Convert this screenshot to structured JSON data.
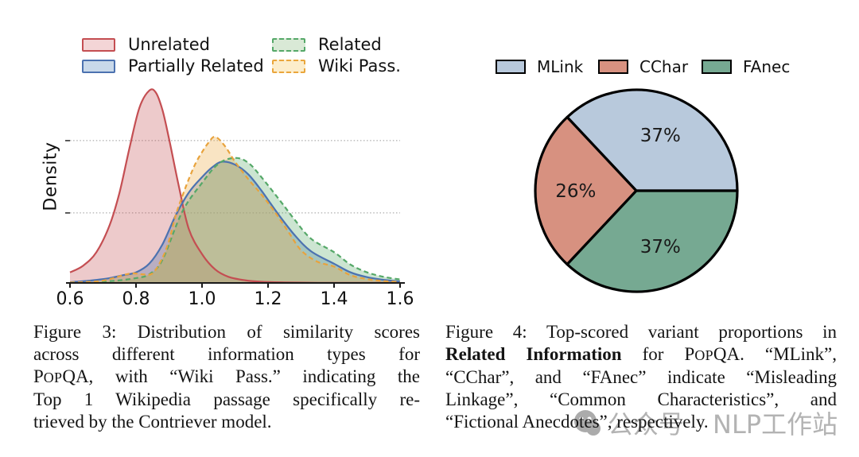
{
  "figure3": {
    "ylabel": "Density",
    "legend": [
      {
        "label": "Unrelated",
        "stroke": "#c44e52",
        "fill": "#f3d5d6",
        "dash": "solid"
      },
      {
        "label": "Partially Related",
        "stroke": "#4c72b0",
        "fill": "#c9d9ea",
        "dash": "solid"
      },
      {
        "label": "Related",
        "stroke": "#55a868",
        "fill": "#d9e9d6",
        "dash": "dashed"
      },
      {
        "label": "Wiki Pass.",
        "stroke": "#eaa63c",
        "fill": "#fcedcb",
        "dash": "dashed"
      }
    ],
    "caption_lines": [
      [
        {
          "t": "Figure 3:  Distribution of similarity scores"
        }
      ],
      [
        {
          "t": "across different information types for"
        }
      ],
      [
        {
          "t": "P"
        },
        {
          "t": "OP",
          "s": "sc"
        },
        {
          "t": "QA, with “Wiki Pass.”  indicating the"
        }
      ],
      [
        {
          "t": "Top 1 Wikipedia passage specifically re-"
        }
      ],
      [
        {
          "t": "trieved by the Contriever model."
        }
      ]
    ]
  },
  "figure4": {
    "legend": [
      {
        "label": "MLink",
        "fill": "#b8c9dc"
      },
      {
        "label": "CChar",
        "fill": "#d79180"
      },
      {
        "label": "FAnec",
        "fill": "#76a992"
      }
    ],
    "caption_lines": [
      [
        {
          "t": "Figure 4: Top-scored variant proportions in"
        }
      ],
      [
        {
          "t": "Related Information",
          "s": "b"
        },
        {
          "t": " for P"
        },
        {
          "t": "OP",
          "s": "sc"
        },
        {
          "t": "QA. “MLink”,"
        }
      ],
      [
        {
          "t": "“CChar”, and “FAnec” indicate “Misleading"
        }
      ],
      [
        {
          "t": "Linkage”, “Common Characteristics”, and"
        }
      ],
      [
        {
          "t": "“Fictional Anecdotes”, respectively."
        }
      ]
    ]
  },
  "watermark": {
    "icon": "wechat-icon",
    "text_left": "公众号",
    "text_right": "NLP工作站"
  },
  "chart_data": [
    {
      "type": "area",
      "title": "",
      "xlabel": "",
      "ylabel": "Density",
      "xlim": [
        0.6,
        1.6
      ],
      "x_ticks": [
        "0.6",
        "0.8",
        "1.0",
        "1.2",
        "1.4",
        "1.6"
      ],
      "y_ticks_labeled": false,
      "gridlines_rel": [
        0.74,
        0.364
      ],
      "grid_style": "dotted horizontal",
      "legend_position": "top two-column",
      "y_note": "relative density, peak of Unrelated = 1.0",
      "series": [
        {
          "name": "Unrelated",
          "color": "#c44e52",
          "dash": "solid",
          "fill": "rgba(196,78,82,0.30)",
          "x": [
            0.6,
            0.64,
            0.68,
            0.72,
            0.75,
            0.78,
            0.81,
            0.84,
            0.86,
            0.88,
            0.9,
            0.93,
            0.96,
            1.0,
            1.04,
            1.08,
            1.13,
            1.18,
            1.25,
            1.35,
            1.5,
            1.6
          ],
          "y": [
            0.055,
            0.09,
            0.16,
            0.3,
            0.47,
            0.7,
            0.91,
            1.0,
            0.99,
            0.9,
            0.75,
            0.5,
            0.28,
            0.15,
            0.07,
            0.032,
            0.014,
            0.006,
            0.003,
            0.001,
            0.001,
            0.001
          ]
        },
        {
          "name": "Partially Related",
          "color": "#4c72b0",
          "dash": "solid",
          "fill": "rgba(76,114,176,0.32)",
          "x": [
            0.6,
            0.66,
            0.72,
            0.76,
            0.8,
            0.84,
            0.88,
            0.92,
            0.96,
            1.0,
            1.03,
            1.06,
            1.1,
            1.14,
            1.18,
            1.23,
            1.28,
            1.33,
            1.4,
            1.45,
            1.5,
            1.55,
            1.6
          ],
          "y": [
            0.004,
            0.012,
            0.025,
            0.04,
            0.055,
            0.1,
            0.2,
            0.35,
            0.47,
            0.55,
            0.6,
            0.63,
            0.615,
            0.565,
            0.48,
            0.36,
            0.25,
            0.165,
            0.1,
            0.055,
            0.03,
            0.016,
            0.008
          ]
        },
        {
          "name": "Related",
          "color": "#55a868",
          "dash": "dashed",
          "fill": "rgba(85,168,104,0.30)",
          "x": [
            0.6,
            0.68,
            0.74,
            0.8,
            0.84,
            0.88,
            0.94,
            1.0,
            1.05,
            1.1,
            1.14,
            1.18,
            1.24,
            1.28,
            1.33,
            1.4,
            1.45,
            1.5,
            1.55,
            1.6
          ],
          "y": [
            0.002,
            0.006,
            0.012,
            0.025,
            0.045,
            0.12,
            0.37,
            0.52,
            0.62,
            0.65,
            0.625,
            0.55,
            0.42,
            0.33,
            0.23,
            0.16,
            0.095,
            0.055,
            0.032,
            0.018
          ]
        },
        {
          "name": "Wiki Pass.",
          "color": "#e8a33d",
          "dash": "dashed",
          "fill": "rgba(238,177,82,0.35)",
          "x": [
            0.6,
            0.68,
            0.72,
            0.76,
            0.79,
            0.82,
            0.85,
            0.88,
            0.9,
            0.92,
            0.94,
            0.96,
            0.98,
            1.0,
            1.02,
            1.04,
            1.07,
            1.1,
            1.14,
            1.18,
            1.22,
            1.26,
            1.3,
            1.35,
            1.4,
            1.45,
            1.5,
            1.55,
            1.6
          ],
          "y": [
            0.002,
            0.008,
            0.02,
            0.04,
            0.05,
            0.045,
            0.05,
            0.13,
            0.22,
            0.35,
            0.45,
            0.54,
            0.62,
            0.68,
            0.73,
            0.76,
            0.71,
            0.63,
            0.54,
            0.46,
            0.37,
            0.27,
            0.17,
            0.11,
            0.085,
            0.04,
            0.02,
            0.01,
            0.005
          ]
        }
      ]
    },
    {
      "type": "pie",
      "labels": [
        "MLink",
        "CChar",
        "FAnec"
      ],
      "values": [
        37,
        26,
        37
      ],
      "value_labels": [
        "37%",
        "26%",
        "37%"
      ],
      "colors": [
        "#b8c9dc",
        "#d79180",
        "#76a992"
      ],
      "edge_color": "#000000",
      "start_angle": 0,
      "direction": "counterclockwise",
      "legend_position": "top row"
    }
  ]
}
